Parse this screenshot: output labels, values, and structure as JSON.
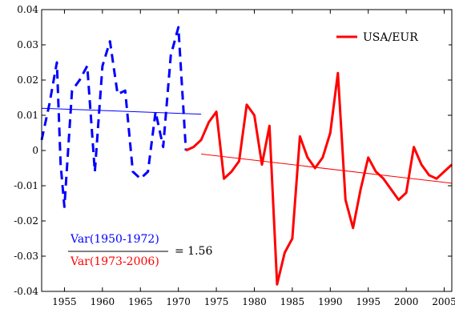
{
  "chart_data": {
    "type": "line",
    "title": "",
    "xlabel": "",
    "ylabel": "",
    "xlim": [
      1952,
      2006
    ],
    "ylim": [
      -0.04,
      0.04
    ],
    "grid": false,
    "legend_position": "top-right",
    "x_ticks": [
      1955,
      1960,
      1965,
      1970,
      1975,
      1980,
      1985,
      1990,
      1995,
      2000,
      2005
    ],
    "y_ticks": [
      -0.04,
      -0.03,
      -0.02,
      -0.01,
      0,
      0.01,
      0.02,
      0.03,
      0.04
    ],
    "y_tick_labels": [
      "-0.04",
      "-0.03",
      "-0.02",
      "-0.01",
      "0",
      "0.01",
      "0.02",
      "0.03",
      "0.04"
    ],
    "series": [
      {
        "color": "#0000ff",
        "style": "dashed",
        "x": [
          1952,
          1953,
          1954,
          1954.5,
          1955,
          1956,
          1957,
          1958,
          1959,
          1960,
          1961,
          1962,
          1963,
          1964,
          1965,
          1966,
          1967,
          1968,
          1969,
          1970,
          1971
        ],
        "y": [
          0.003,
          0.013,
          0.025,
          -0.004,
          -0.016,
          0.017,
          0.02,
          0.024,
          -0.006,
          0.024,
          0.031,
          0.016,
          0.017,
          -0.006,
          -0.008,
          -0.006,
          0.011,
          0.001,
          0.027,
          0.035,
          0.0
        ]
      },
      {
        "name": "USA/EUR",
        "color": "#ff0000",
        "style": "solid",
        "x": [
          1971,
          1972,
          1973,
          1974,
          1975,
          1976,
          1977,
          1978,
          1979,
          1980,
          1981,
          1982,
          1983,
          1984,
          1985,
          1986,
          1987,
          1988,
          1989,
          1990,
          1991,
          1992,
          1993,
          1994,
          1995,
          1996,
          1997,
          1998,
          1999,
          2000,
          2001,
          2002,
          2003,
          2004,
          2005,
          2006
        ],
        "y": [
          0.0,
          0.001,
          0.003,
          0.008,
          0.011,
          -0.008,
          -0.006,
          -0.003,
          0.013,
          0.01,
          -0.004,
          0.007,
          -0.038,
          -0.029,
          -0.025,
          0.004,
          -0.002,
          -0.005,
          -0.002,
          0.005,
          0.022,
          -0.014,
          -0.022,
          -0.011,
          -0.002,
          -0.006,
          -0.008,
          -0.011,
          -0.014,
          -0.012,
          0.001,
          -0.004,
          -0.007,
          -0.008,
          -0.006,
          -0.004
        ]
      }
    ],
    "trend_lines": [
      {
        "color": "#0000ff",
        "x": [
          1952,
          1973
        ],
        "y": [
          0.012,
          0.0103
        ]
      },
      {
        "color": "#ff0000",
        "x": [
          1973,
          2006
        ],
        "y": [
          -0.001,
          -0.0093
        ]
      }
    ],
    "annotation": {
      "numerator": "Var(1950-1972)",
      "denominator": "Var(1973-2006)",
      "result": "= 1.56",
      "numerator_color": "#0000ff",
      "denominator_color": "#ff0000"
    }
  }
}
